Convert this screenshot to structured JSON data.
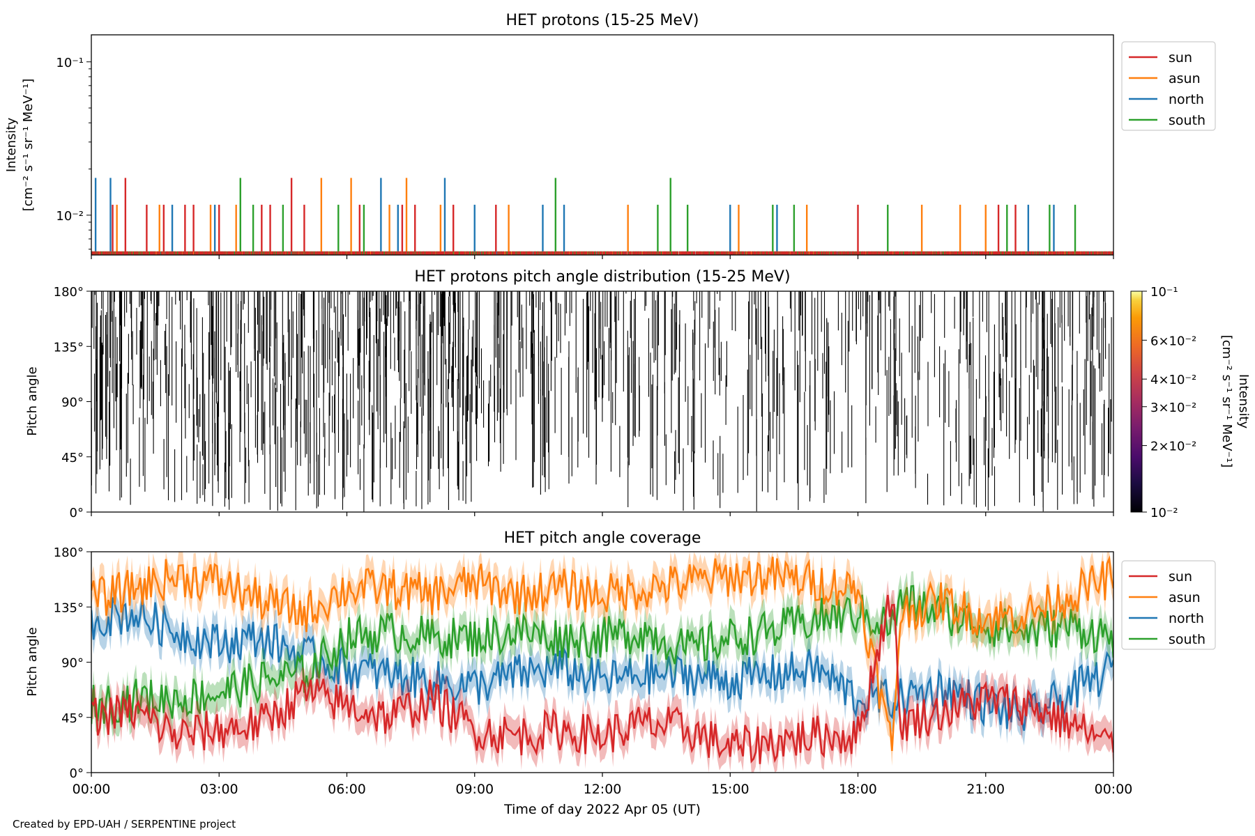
{
  "footer": "Created by EPD-UAH / SERPENTINE project",
  "xaxis": {
    "label": "Time of day 2022 Apr 05 (UT)",
    "ticks": [
      "00:00",
      "03:00",
      "06:00",
      "09:00",
      "12:00",
      "15:00",
      "18:00",
      "21:00",
      "00:00"
    ],
    "range_hours": [
      0,
      24
    ]
  },
  "colors": {
    "sun": "#d62728",
    "asun": "#ff7f0e",
    "north": "#1f77b4",
    "south": "#2ca02c"
  },
  "chart_data": [
    {
      "type": "line",
      "title": "HET protons (15-25 MeV)",
      "ylabel": [
        "Intensity",
        "[cm⁻² s⁻¹ sr⁻¹ MeV⁻¹]"
      ],
      "yscale": "log",
      "ylim": [
        0.0055,
        0.15
      ],
      "yticks": [
        {
          "value": 0.01,
          "label": "10⁻²"
        },
        {
          "value": 0.1,
          "label": "10⁻¹"
        }
      ],
      "legend": {
        "placement": "outside-top-right",
        "entries": [
          "sun",
          "asun",
          "north",
          "south"
        ]
      },
      "baseline_value": 0.0058,
      "spike_levels": [
        0.0058,
        0.0117,
        0.0175
      ],
      "series": [
        {
          "name": "sun",
          "spikes": [
            {
              "t": 0.5,
              "v": 0.0117
            },
            {
              "t": 0.8,
              "v": 0.0175
            },
            {
              "t": 1.3,
              "v": 0.0117
            },
            {
              "t": 1.7,
              "v": 0.0117
            },
            {
              "t": 2.2,
              "v": 0.0117
            },
            {
              "t": 2.4,
              "v": 0.0117
            },
            {
              "t": 3.0,
              "v": 0.0117
            },
            {
              "t": 4.0,
              "v": 0.0117
            },
            {
              "t": 4.2,
              "v": 0.0117
            },
            {
              "t": 4.7,
              "v": 0.0175
            },
            {
              "t": 5.0,
              "v": 0.0117
            },
            {
              "t": 6.3,
              "v": 0.0117
            },
            {
              "t": 7.3,
              "v": 0.0117
            },
            {
              "t": 7.6,
              "v": 0.0117
            },
            {
              "t": 8.5,
              "v": 0.0117
            },
            {
              "t": 9.5,
              "v": 0.0117
            },
            {
              "t": 18.0,
              "v": 0.0117
            },
            {
              "t": 21.3,
              "v": 0.0117
            },
            {
              "t": 21.7,
              "v": 0.0117
            }
          ]
        },
        {
          "name": "asun",
          "spikes": [
            {
              "t": 0.6,
              "v": 0.0117
            },
            {
              "t": 1.6,
              "v": 0.0117
            },
            {
              "t": 2.8,
              "v": 0.0117
            },
            {
              "t": 3.4,
              "v": 0.0117
            },
            {
              "t": 5.4,
              "v": 0.0175
            },
            {
              "t": 6.1,
              "v": 0.0175
            },
            {
              "t": 7.0,
              "v": 0.0117
            },
            {
              "t": 7.4,
              "v": 0.0175
            },
            {
              "t": 8.2,
              "v": 0.0117
            },
            {
              "t": 9.8,
              "v": 0.0117
            },
            {
              "t": 12.6,
              "v": 0.0117
            },
            {
              "t": 15.2,
              "v": 0.0117
            },
            {
              "t": 16.8,
              "v": 0.0117
            },
            {
              "t": 19.5,
              "v": 0.0117
            },
            {
              "t": 20.4,
              "v": 0.0117
            },
            {
              "t": 21.0,
              "v": 0.0117
            }
          ]
        },
        {
          "name": "north",
          "spikes": [
            {
              "t": 0.1,
              "v": 0.0175
            },
            {
              "t": 0.45,
              "v": 0.0175
            },
            {
              "t": 1.9,
              "v": 0.0117
            },
            {
              "t": 2.9,
              "v": 0.0117
            },
            {
              "t": 6.8,
              "v": 0.0175
            },
            {
              "t": 7.2,
              "v": 0.0117
            },
            {
              "t": 8.3,
              "v": 0.0175
            },
            {
              "t": 9.0,
              "v": 0.0117
            },
            {
              "t": 10.6,
              "v": 0.0117
            },
            {
              "t": 11.1,
              "v": 0.0117
            },
            {
              "t": 15.0,
              "v": 0.0117
            },
            {
              "t": 16.1,
              "v": 0.0117
            },
            {
              "t": 22.0,
              "v": 0.0117
            },
            {
              "t": 22.6,
              "v": 0.0117
            }
          ]
        },
        {
          "name": "south",
          "spikes": [
            {
              "t": 3.5,
              "v": 0.0175
            },
            {
              "t": 3.8,
              "v": 0.0117
            },
            {
              "t": 4.5,
              "v": 0.0117
            },
            {
              "t": 5.8,
              "v": 0.0117
            },
            {
              "t": 6.4,
              "v": 0.0117
            },
            {
              "t": 10.9,
              "v": 0.0175
            },
            {
              "t": 13.3,
              "v": 0.0117
            },
            {
              "t": 13.6,
              "v": 0.0175
            },
            {
              "t": 14.0,
              "v": 0.0117
            },
            {
              "t": 16.0,
              "v": 0.0117
            },
            {
              "t": 16.5,
              "v": 0.0117
            },
            {
              "t": 18.7,
              "v": 0.0117
            },
            {
              "t": 21.5,
              "v": 0.0117
            },
            {
              "t": 22.5,
              "v": 0.0117
            },
            {
              "t": 23.1,
              "v": 0.0117
            }
          ]
        }
      ]
    },
    {
      "type": "heatmap",
      "title": "HET protons pitch angle distribution (15-25 MeV)",
      "ylabel": "Pitch angle",
      "ylim": [
        0,
        180
      ],
      "yticks": [
        "0°",
        "45°",
        "90°",
        "135°",
        "180°"
      ],
      "colorbar": {
        "label": "Intensity\n[cm⁻² s⁻¹ sr⁻¹ MeV⁻¹]",
        "scale": "log",
        "range": [
          0.01,
          0.1
        ],
        "colormap": "inferno",
        "tick_labels": [
          {
            "value": 0.01,
            "label": "10⁻²"
          },
          {
            "value": 0.02,
            "label": "2×10⁻²"
          },
          {
            "value": 0.03,
            "label": "3×10⁻²"
          },
          {
            "value": 0.04,
            "label": "4×10⁻²"
          },
          {
            "value": 0.06,
            "label": "6×10⁻²"
          },
          {
            "value": 0.1,
            "label": "10⁻¹"
          }
        ]
      },
      "cell_value_shown": 0.01,
      "background": "white"
    },
    {
      "type": "line",
      "title": "HET pitch angle coverage",
      "ylabel": "Pitch angle",
      "ylim": [
        0,
        180
      ],
      "yticks": [
        "0°",
        "45°",
        "90°",
        "135°",
        "180°"
      ],
      "legend": {
        "placement": "outside-top-right",
        "entries": [
          "sun",
          "asun",
          "north",
          "south"
        ]
      },
      "band_halfwidth_deg": 12,
      "series": [
        {
          "name": "sun",
          "t": [
            0,
            1,
            2,
            3,
            4,
            5,
            6,
            7,
            8,
            9,
            10,
            11,
            12,
            13,
            14,
            15,
            16,
            17,
            18,
            18.8,
            19,
            20,
            21,
            22,
            23,
            24
          ],
          "mean": [
            45,
            50,
            30,
            35,
            40,
            65,
            55,
            45,
            60,
            35,
            30,
            35,
            30,
            40,
            35,
            20,
            25,
            30,
            30,
            150,
            40,
            50,
            60,
            55,
            40,
            20
          ]
        },
        {
          "name": "asun",
          "t": [
            0,
            1,
            2,
            3,
            4,
            5,
            6,
            7,
            8,
            9,
            10,
            11,
            12,
            13,
            14,
            15,
            16,
            17,
            18,
            18.8,
            19,
            20,
            21,
            22,
            23,
            24
          ],
          "mean": [
            140,
            150,
            160,
            155,
            140,
            130,
            150,
            150,
            145,
            155,
            145,
            150,
            145,
            150,
            155,
            160,
            160,
            155,
            150,
            20,
            130,
            140,
            125,
            130,
            145,
            160
          ]
        },
        {
          "name": "north",
          "t": [
            0,
            1,
            2,
            3,
            4,
            5,
            6,
            7,
            8,
            9,
            10,
            11,
            12,
            13,
            14,
            15,
            16,
            17,
            18,
            18.8,
            19,
            20,
            21,
            22,
            23,
            24
          ],
          "mean": [
            125,
            130,
            115,
            105,
            110,
            95,
            85,
            80,
            75,
            70,
            80,
            85,
            75,
            80,
            80,
            75,
            80,
            85,
            60,
            60,
            60,
            70,
            55,
            45,
            65,
            85
          ]
        },
        {
          "name": "south",
          "t": [
            0,
            1,
            2,
            3,
            4,
            5,
            6,
            7,
            8,
            9,
            10,
            11,
            12,
            13,
            14,
            15,
            16,
            17,
            18,
            18.8,
            19,
            20,
            21,
            22,
            23,
            24
          ],
          "mean": [
            55,
            60,
            60,
            65,
            75,
            80,
            110,
            115,
            110,
            110,
            115,
            110,
            110,
            115,
            100,
            110,
            115,
            125,
            130,
            120,
            140,
            130,
            120,
            115,
            120,
            110
          ]
        }
      ]
    }
  ]
}
